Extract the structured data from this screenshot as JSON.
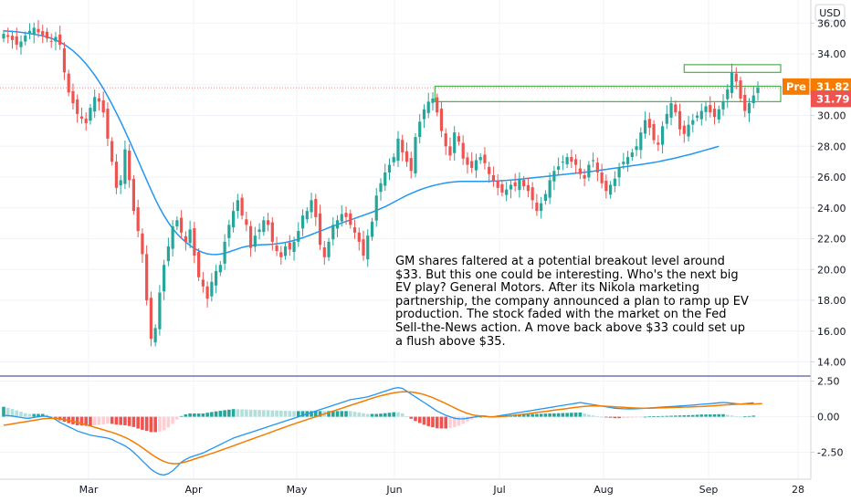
{
  "currency": "USD",
  "annotation": "GM shares faltered at a potential breakout level around $33. But this one could be interesting. Who's the next big EV play? General Motors. After its Nikola marketing partnership, the company announced a plan to ramp up EV production. The stock faded with the market on the Fed Sell-the-News action. A move back above $33 could set up a flush above $35.",
  "badges": {
    "pre_label": "Pre",
    "pre_value": "31.82",
    "last_value": "31.79",
    "pre_color": "#f57c00",
    "last_color": "#ef5350"
  },
  "colors": {
    "up": "#26a69a",
    "down": "#ef5350",
    "ma": "#2196f3",
    "signal": "#f57c00",
    "hist_up_strong": "#26a69a",
    "hist_up_weak": "#b2dfdb",
    "hist_down_strong": "#ef5350",
    "hist_down_weak": "#ffcdd2",
    "box": "#4caf50"
  },
  "chart_data": {
    "type": "candlestick",
    "price_axis": {
      "ticks": [
        "36.00",
        "34.00",
        "32.00",
        "30.00",
        "28.00",
        "26.00",
        "24.00",
        "22.00",
        "20.00",
        "18.00",
        "16.00",
        "14.00"
      ],
      "ylim": [
        13.2,
        37.5
      ]
    },
    "macd_axis": {
      "ticks": [
        "2.50",
        "0.00",
        "-2.50"
      ],
      "ylim": [
        -4.2,
        2.8
      ]
    },
    "x_axis": {
      "ticks": [
        "Mar",
        "Apr",
        "May",
        "Jun",
        "Jul",
        "Aug",
        "Sep",
        "28"
      ]
    },
    "closes": [
      35.3,
      35.1,
      34.9,
      34.6,
      34.8,
      35.2,
      35.5,
      35.7,
      35.4,
      35.2,
      35.0,
      34.8,
      35.1,
      34.6,
      32.8,
      31.5,
      30.8,
      30.1,
      29.8,
      29.5,
      30.5,
      31.2,
      30.9,
      30.2,
      28.5,
      27.0,
      25.3,
      25.8,
      27.8,
      25.8,
      23.8,
      22.5,
      21.0,
      18.0,
      15.5,
      16.2,
      18.5,
      20.3,
      21.5,
      22.8,
      23.2,
      22.4,
      21.8,
      22.6,
      20.9,
      19.5,
      18.9,
      18.1,
      19.2,
      19.9,
      20.3,
      21.8,
      22.9,
      23.8,
      24.5,
      23.5,
      22.9,
      21.4,
      22.2,
      22.6,
      23.2,
      22.9,
      21.8,
      21.2,
      20.8,
      21.5,
      21.3,
      21.8,
      22.5,
      23.5,
      23.8,
      24.5,
      23.4,
      21.6,
      20.8,
      21.8,
      22.9,
      23.2,
      23.6,
      23.4,
      22.9,
      22.4,
      21.8,
      20.9,
      22.2,
      23.1,
      24.8,
      25.6,
      26.3,
      26.8,
      27.3,
      28.5,
      27.6,
      27.0,
      26.4,
      28.6,
      29.6,
      30.4,
      30.9,
      31.1,
      30.2,
      29.0,
      28.0,
      27.4,
      28.9,
      28.3,
      27.2,
      26.8,
      26.6,
      27.1,
      27.3,
      26.9,
      26.2,
      25.7,
      25.3,
      25.0,
      25.2,
      25.5,
      25.4,
      25.9,
      25.4,
      25.1,
      24.5,
      23.8,
      24.3,
      24.9,
      25.8,
      26.4,
      26.7,
      27.0,
      27.3,
      27.0,
      26.8,
      26.2,
      25.9,
      26.8,
      27.1,
      26.3,
      25.6,
      25.1,
      25.5,
      25.9,
      26.6,
      27.0,
      27.3,
      27.6,
      28.0,
      28.9,
      29.7,
      29.2,
      28.4,
      28.1,
      29.3,
      30.1,
      30.8,
      30.2,
      29.1,
      28.8,
      29.4,
      29.7,
      30.0,
      30.3,
      30.6,
      30.2,
      29.9,
      30.4,
      30.9,
      31.7,
      32.8,
      32.2,
      31.1,
      30.3,
      30.8,
      31.3,
      31.8
    ],
    "sma": [
      35.5,
      35.48,
      35.46,
      35.43,
      35.4,
      35.36,
      35.32,
      35.28,
      35.23,
      35.17,
      35.1,
      35.01,
      34.9,
      34.77,
      34.61,
      34.42,
      34.2,
      33.95,
      33.67,
      33.35,
      33.0,
      32.62,
      32.2,
      31.75,
      31.25,
      30.72,
      30.17,
      29.6,
      29.0,
      28.38,
      27.74,
      27.1,
      26.45,
      25.8,
      25.17,
      24.57,
      24.0,
      23.5,
      23.05,
      22.66,
      22.32,
      22.03,
      21.78,
      21.56,
      21.37,
      21.22,
      21.1,
      21.02,
      20.98,
      20.97,
      21.0,
      21.06,
      21.14,
      21.24,
      21.34,
      21.43,
      21.5,
      21.55,
      21.58,
      21.6,
      21.61,
      21.62,
      21.64,
      21.67,
      21.71,
      21.76,
      21.82,
      21.89,
      21.97,
      22.06,
      22.16,
      22.27,
      22.38,
      22.49,
      22.6,
      22.71,
      22.82,
      22.92,
      23.02,
      23.12,
      23.22,
      23.32,
      23.42,
      23.52,
      23.62,
      23.72,
      23.83,
      23.95,
      24.08,
      24.22,
      24.37,
      24.52,
      24.67,
      24.81,
      24.94,
      25.06,
      25.17,
      25.27,
      25.36,
      25.44,
      25.51,
      25.57,
      25.62,
      25.66,
      25.69,
      25.71,
      25.72,
      25.72,
      25.72,
      25.72,
      25.72,
      25.72,
      25.73,
      25.74,
      25.75,
      25.77,
      25.79,
      25.81,
      25.83,
      25.86,
      25.89,
      25.92,
      25.95,
      25.98,
      26.01,
      26.04,
      26.07,
      26.1,
      26.13,
      26.16,
      26.19,
      26.22,
      26.25,
      26.28,
      26.31,
      26.34,
      26.38,
      26.42,
      26.46,
      26.5,
      26.54,
      26.58,
      26.62,
      26.66,
      26.7,
      26.74,
      26.78,
      26.82,
      26.86,
      26.9,
      26.95,
      27.0,
      27.06,
      27.12,
      27.18,
      27.24,
      27.31,
      27.38,
      27.45,
      27.52,
      27.6,
      27.68,
      27.76,
      27.84,
      27.92,
      28.0
    ],
    "macd": [
      0.1,
      0.08,
      0.05,
      0.0,
      -0.05,
      -0.1,
      -0.1,
      -0.05,
      0.0,
      0.05,
      0.02,
      -0.05,
      -0.2,
      -0.4,
      -0.55,
      -0.7,
      -0.85,
      -1.0,
      -1.1,
      -1.2,
      -1.3,
      -1.35,
      -1.4,
      -1.45,
      -1.5,
      -1.6,
      -1.75,
      -1.9,
      -2.05,
      -2.25,
      -2.5,
      -2.8,
      -3.1,
      -3.4,
      -3.7,
      -3.9,
      -4.05,
      -4.1,
      -4.0,
      -3.8,
      -3.5,
      -3.2,
      -3.0,
      -2.85,
      -2.75,
      -2.65,
      -2.55,
      -2.4,
      -2.25,
      -2.1,
      -1.95,
      -1.8,
      -1.65,
      -1.5,
      -1.4,
      -1.3,
      -1.2,
      -1.1,
      -1.0,
      -0.9,
      -0.8,
      -0.7,
      -0.6,
      -0.5,
      -0.4,
      -0.3,
      -0.2,
      -0.1,
      0.0,
      0.1,
      0.2,
      0.3,
      0.4,
      0.5,
      0.6,
      0.7,
      0.8,
      0.9,
      1.0,
      1.1,
      1.2,
      1.25,
      1.3,
      1.35,
      1.4,
      1.5,
      1.6,
      1.7,
      1.8,
      1.9,
      2.0,
      2.05,
      2.0,
      1.8,
      1.6,
      1.4,
      1.2,
      1.0,
      0.8,
      0.6,
      0.4,
      0.25,
      0.1,
      0.0,
      -0.1,
      -0.15,
      -0.15,
      -0.1,
      -0.05,
      0.0,
      0.05,
      0.05,
      0.0,
      0.0,
      0.05,
      0.1,
      0.15,
      0.2,
      0.25,
      0.3,
      0.35,
      0.4,
      0.45,
      0.5,
      0.55,
      0.6,
      0.65,
      0.7,
      0.75,
      0.8,
      0.85,
      0.9,
      0.95,
      1.0,
      0.95,
      0.9,
      0.85,
      0.8,
      0.75,
      0.7,
      0.65,
      0.6,
      0.58,
      0.56,
      0.55,
      0.55,
      0.56,
      0.58,
      0.6,
      0.62,
      0.64,
      0.66,
      0.68,
      0.7,
      0.72,
      0.74,
      0.76,
      0.78,
      0.8,
      0.82,
      0.85,
      0.88,
      0.9,
      0.92,
      0.95,
      0.98,
      1.0,
      0.98,
      0.95,
      0.92,
      0.9,
      0.92,
      0.95,
      0.98
    ],
    "signal": [
      -0.6,
      -0.55,
      -0.5,
      -0.45,
      -0.4,
      -0.35,
      -0.3,
      -0.25,
      -0.2,
      -0.15,
      -0.12,
      -0.1,
      -0.12,
      -0.15,
      -0.2,
      -0.25,
      -0.32,
      -0.4,
      -0.48,
      -0.56,
      -0.65,
      -0.74,
      -0.83,
      -0.92,
      -1.01,
      -1.1,
      -1.2,
      -1.32,
      -1.45,
      -1.6,
      -1.78,
      -1.97,
      -2.18,
      -2.4,
      -2.62,
      -2.82,
      -3.0,
      -3.15,
      -3.25,
      -3.3,
      -3.3,
      -3.25,
      -3.17,
      -3.08,
      -2.98,
      -2.88,
      -2.78,
      -2.68,
      -2.58,
      -2.48,
      -2.37,
      -2.26,
      -2.15,
      -2.04,
      -1.93,
      -1.82,
      -1.71,
      -1.6,
      -1.49,
      -1.38,
      -1.27,
      -1.16,
      -1.05,
      -0.94,
      -0.83,
      -0.72,
      -0.61,
      -0.5,
      -0.4,
      -0.3,
      -0.2,
      -0.1,
      0.0,
      0.1,
      0.2,
      0.3,
      0.4,
      0.5,
      0.6,
      0.7,
      0.8,
      0.9,
      1.0,
      1.1,
      1.2,
      1.3,
      1.4,
      1.48,
      1.55,
      1.62,
      1.68,
      1.73,
      1.76,
      1.76,
      1.74,
      1.7,
      1.64,
      1.56,
      1.46,
      1.34,
      1.21,
      1.07,
      0.93,
      0.78,
      0.63,
      0.48,
      0.35,
      0.24,
      0.15,
      0.09,
      0.05,
      0.02,
      0.0,
      0.0,
      0.0,
      0.02,
      0.04,
      0.07,
      0.1,
      0.14,
      0.18,
      0.22,
      0.26,
      0.3,
      0.34,
      0.38,
      0.42,
      0.46,
      0.5,
      0.54,
      0.58,
      0.62,
      0.66,
      0.7,
      0.73,
      0.75,
      0.76,
      0.76,
      0.75,
      0.74,
      0.72,
      0.7,
      0.68,
      0.66,
      0.64,
      0.62,
      0.61,
      0.6,
      0.6,
      0.6,
      0.61,
      0.62,
      0.63,
      0.64,
      0.65,
      0.66,
      0.67,
      0.68,
      0.69,
      0.7,
      0.71,
      0.72,
      0.74,
      0.76,
      0.78,
      0.8,
      0.82,
      0.84,
      0.86,
      0.88,
      0.89,
      0.9,
      0.9,
      0.9,
      0.91,
      0.92
    ]
  }
}
